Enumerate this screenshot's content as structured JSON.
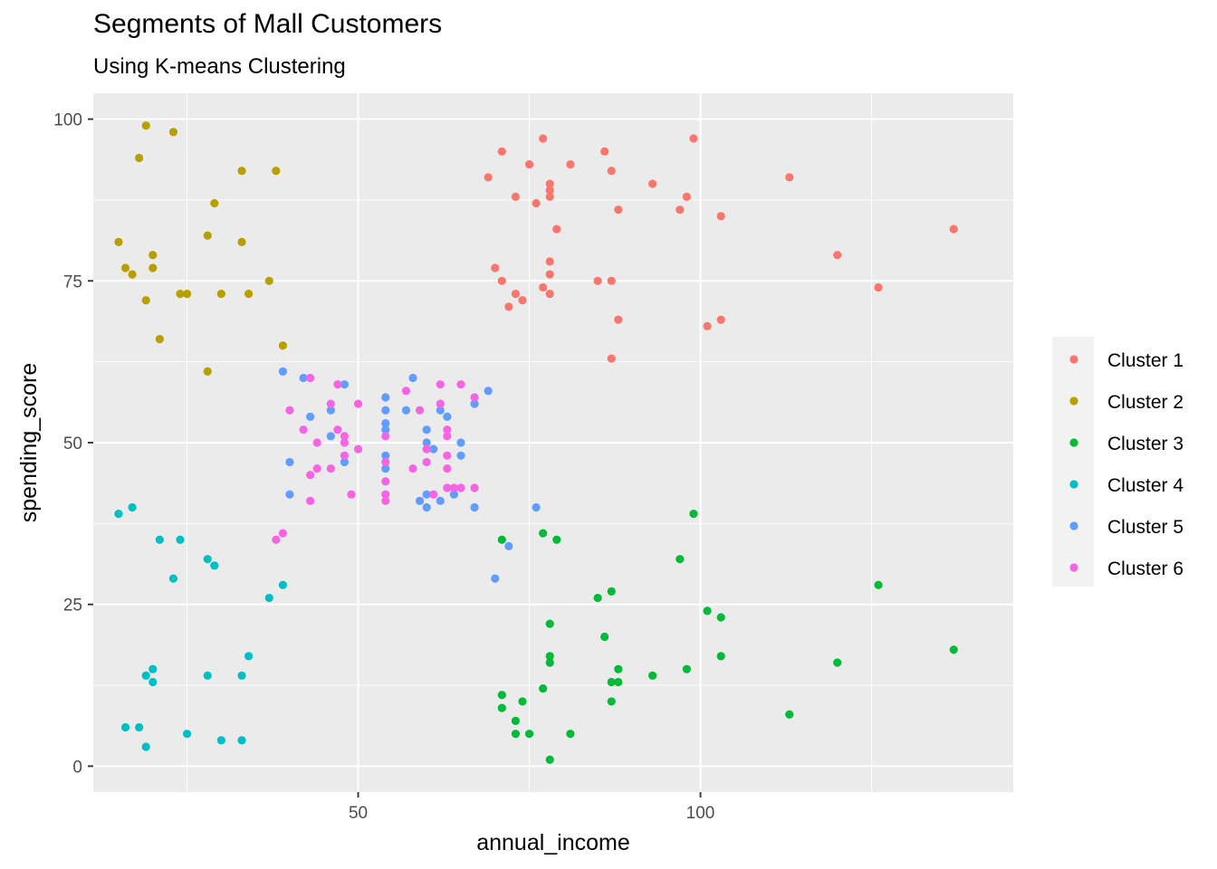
{
  "chart_data": {
    "type": "scatter",
    "title": "Segments of Mall Customers",
    "subtitle": "Using K-means Clustering",
    "xlabel": "annual_income",
    "ylabel": "spending_score",
    "xlim": [
      11.3,
      145.7
    ],
    "ylim": [
      -4,
      104
    ],
    "x_ticks": [
      50,
      100
    ],
    "y_ticks": [
      0,
      25,
      50,
      75,
      100
    ],
    "grid": true,
    "legend_position": "right",
    "series": [
      {
        "name": "Cluster 1",
        "color": "#F8766D",
        "points": [
          [
            69,
            91
          ],
          [
            70,
            77
          ],
          [
            71,
            95
          ],
          [
            71,
            75
          ],
          [
            72,
            71
          ],
          [
            73,
            88
          ],
          [
            73,
            73
          ],
          [
            74,
            72
          ],
          [
            75,
            93
          ],
          [
            76,
            87
          ],
          [
            77,
            97
          ],
          [
            77,
            74
          ],
          [
            78,
            90
          ],
          [
            78,
            89
          ],
          [
            78,
            88
          ],
          [
            78,
            78
          ],
          [
            78,
            76
          ],
          [
            78,
            73
          ],
          [
            79,
            83
          ],
          [
            81,
            93
          ],
          [
            85,
            75
          ],
          [
            86,
            95
          ],
          [
            87,
            92
          ],
          [
            87,
            75
          ],
          [
            87,
            63
          ],
          [
            88,
            86
          ],
          [
            88,
            69
          ],
          [
            93,
            90
          ],
          [
            97,
            86
          ],
          [
            98,
            88
          ],
          [
            99,
            97
          ],
          [
            101,
            68
          ],
          [
            103,
            85
          ],
          [
            103,
            69
          ],
          [
            113,
            91
          ],
          [
            120,
            79
          ],
          [
            126,
            74
          ],
          [
            137,
            83
          ]
        ]
      },
      {
        "name": "Cluster 2",
        "color": "#B79F00",
        "points": [
          [
            15,
            81
          ],
          [
            16,
            77
          ],
          [
            17,
            76
          ],
          [
            18,
            94
          ],
          [
            19,
            72
          ],
          [
            19,
            99
          ],
          [
            20,
            77
          ],
          [
            20,
            79
          ],
          [
            21,
            66
          ],
          [
            23,
            98
          ],
          [
            24,
            73
          ],
          [
            25,
            73
          ],
          [
            28,
            82
          ],
          [
            28,
            61
          ],
          [
            29,
            87
          ],
          [
            30,
            73
          ],
          [
            33,
            92
          ],
          [
            33,
            81
          ],
          [
            34,
            73
          ],
          [
            37,
            75
          ],
          [
            38,
            92
          ],
          [
            39,
            65
          ]
        ]
      },
      {
        "name": "Cluster 3",
        "color": "#00BA38",
        "points": [
          [
            71,
            35
          ],
          [
            71,
            11
          ],
          [
            71,
            9
          ],
          [
            73,
            7
          ],
          [
            73,
            5
          ],
          [
            74,
            10
          ],
          [
            75,
            5
          ],
          [
            77,
            36
          ],
          [
            77,
            12
          ],
          [
            78,
            22
          ],
          [
            78,
            17
          ],
          [
            78,
            16
          ],
          [
            78,
            1
          ],
          [
            79,
            35
          ],
          [
            81,
            5
          ],
          [
            85,
            26
          ],
          [
            86,
            20
          ],
          [
            87,
            27
          ],
          [
            87,
            13
          ],
          [
            87,
            10
          ],
          [
            88,
            15
          ],
          [
            88,
            13
          ],
          [
            93,
            14
          ],
          [
            97,
            32
          ],
          [
            98,
            15
          ],
          [
            99,
            39
          ],
          [
            101,
            24
          ],
          [
            103,
            23
          ],
          [
            103,
            17
          ],
          [
            113,
            8
          ],
          [
            120,
            16
          ],
          [
            126,
            28
          ],
          [
            137,
            18
          ]
        ]
      },
      {
        "name": "Cluster 4",
        "color": "#00BFC4",
        "points": [
          [
            15,
            39
          ],
          [
            16,
            6
          ],
          [
            17,
            40
          ],
          [
            18,
            6
          ],
          [
            19,
            3
          ],
          [
            19,
            14
          ],
          [
            20,
            15
          ],
          [
            20,
            13
          ],
          [
            21,
            35
          ],
          [
            23,
            29
          ],
          [
            24,
            35
          ],
          [
            25,
            5
          ],
          [
            28,
            14
          ],
          [
            28,
            32
          ],
          [
            29,
            31
          ],
          [
            30,
            4
          ],
          [
            33,
            4
          ],
          [
            33,
            14
          ],
          [
            34,
            17
          ],
          [
            37,
            26
          ],
          [
            39,
            28
          ]
        ]
      },
      {
        "name": "Cluster 5",
        "color": "#619CFF",
        "points": [
          [
            39,
            61
          ],
          [
            40,
            47
          ],
          [
            40,
            42
          ],
          [
            42,
            60
          ],
          [
            43,
            54
          ],
          [
            46,
            51
          ],
          [
            46,
            55
          ],
          [
            48,
            59
          ],
          [
            48,
            47
          ],
          [
            54,
            57
          ],
          [
            54,
            55
          ],
          [
            54,
            53
          ],
          [
            54,
            52
          ],
          [
            54,
            48
          ],
          [
            54,
            46
          ],
          [
            57,
            55
          ],
          [
            58,
            60
          ],
          [
            59,
            41
          ],
          [
            60,
            40
          ],
          [
            60,
            42
          ],
          [
            60,
            52
          ],
          [
            60,
            50
          ],
          [
            61,
            49
          ],
          [
            62,
            41
          ],
          [
            62,
            55
          ],
          [
            63,
            54
          ],
          [
            64,
            42
          ],
          [
            65,
            50
          ],
          [
            65,
            48
          ],
          [
            67,
            56
          ],
          [
            67,
            40
          ],
          [
            69,
            58
          ],
          [
            70,
            29
          ],
          [
            72,
            34
          ],
          [
            76,
            40
          ]
        ]
      },
      {
        "name": "Cluster 6",
        "color": "#F564E3",
        "points": [
          [
            38,
            35
          ],
          [
            39,
            36
          ],
          [
            40,
            55
          ],
          [
            42,
            52
          ],
          [
            43,
            60
          ],
          [
            43,
            45
          ],
          [
            43,
            41
          ],
          [
            44,
            50
          ],
          [
            44,
            46
          ],
          [
            46,
            46
          ],
          [
            46,
            56
          ],
          [
            47,
            52
          ],
          [
            47,
            59
          ],
          [
            48,
            51
          ],
          [
            48,
            50
          ],
          [
            48,
            48
          ],
          [
            49,
            42
          ],
          [
            50,
            49
          ],
          [
            50,
            56
          ],
          [
            54,
            47
          ],
          [
            54,
            51
          ],
          [
            54,
            42
          ],
          [
            54,
            41
          ],
          [
            54,
            44
          ],
          [
            57,
            58
          ],
          [
            58,
            46
          ],
          [
            59,
            55
          ],
          [
            60,
            49
          ],
          [
            60,
            47
          ],
          [
            61,
            42
          ],
          [
            62,
            59
          ],
          [
            62,
            56
          ],
          [
            63,
            52
          ],
          [
            63,
            51
          ],
          [
            63,
            48
          ],
          [
            63,
            43
          ],
          [
            63,
            46
          ],
          [
            64,
            43
          ],
          [
            65,
            59
          ],
          [
            65,
            43
          ],
          [
            67,
            57
          ],
          [
            67,
            43
          ]
        ]
      }
    ]
  }
}
